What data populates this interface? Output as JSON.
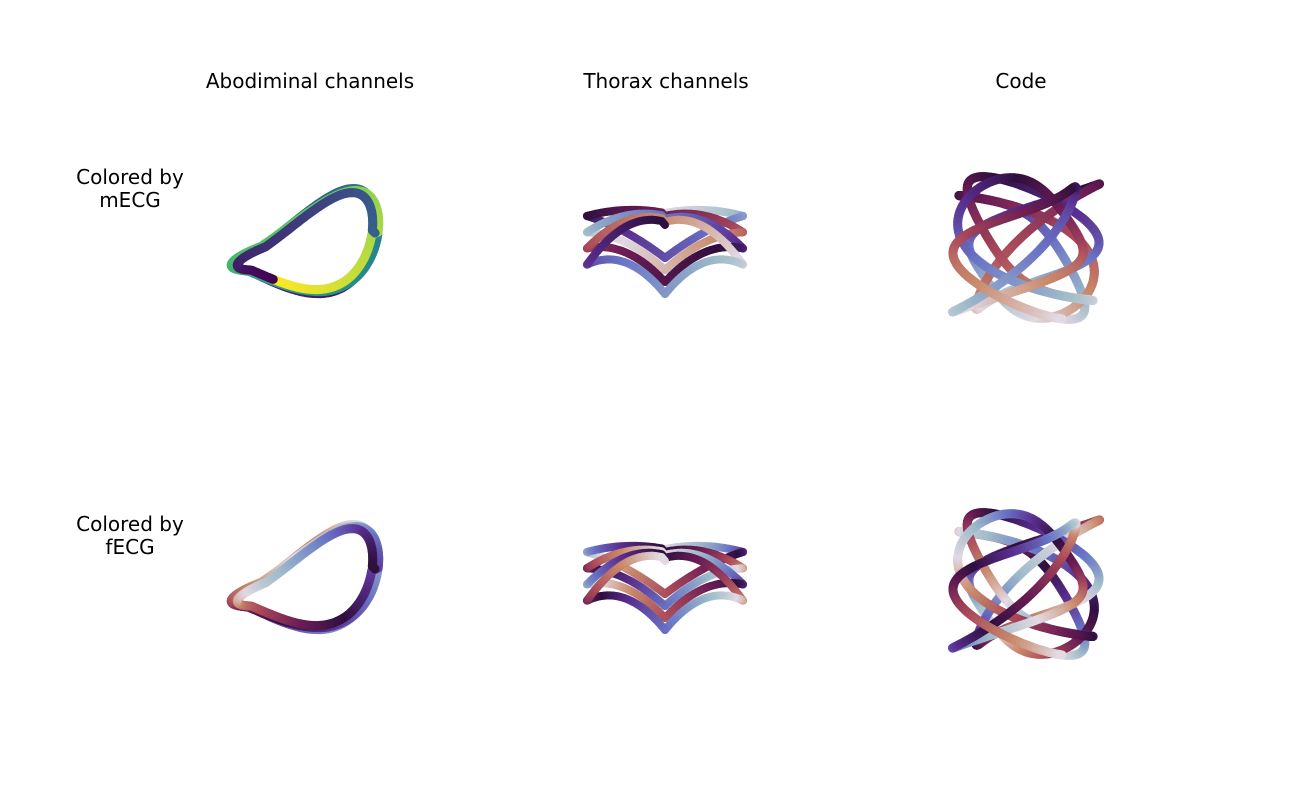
{
  "figure": {
    "columns": [
      "Abodiminal channels",
      "Thorax channels",
      "Code"
    ],
    "rows": [
      {
        "line1": "Colored by",
        "line2": "mECG"
      },
      {
        "line1": "Colored by",
        "line2": "fECG"
      }
    ]
  },
  "colors": {
    "viridis": [
      "#440154",
      "#3b528b",
      "#21918c",
      "#5ec962",
      "#fde725"
    ],
    "twilight": [
      "#e2d9e2",
      "#9ebbc9",
      "#6a75c6",
      "#5a2e8f",
      "#2f0f3e",
      "#6c1d55",
      "#a9495a",
      "#c98a6c",
      "#e2d9e2"
    ]
  },
  "chart_data": [
    {
      "type": "line",
      "panel": "Abodiminal channels / Colored by mECG",
      "colormap": "viridis"
    },
    {
      "type": "line",
      "panel": "Thorax channels / Colored by mECG",
      "colormap": "twilight"
    },
    {
      "type": "line",
      "panel": "Code / Colored by mECG",
      "colormap": "twilight"
    },
    {
      "type": "line",
      "panel": "Abodiminal channels / Colored by fECG",
      "colormap": "twilight"
    },
    {
      "type": "line",
      "panel": "Thorax channels / Colored by fECG",
      "colormap": "twilight"
    },
    {
      "type": "line",
      "panel": "Code / Colored by fECG",
      "colormap": "twilight"
    }
  ]
}
